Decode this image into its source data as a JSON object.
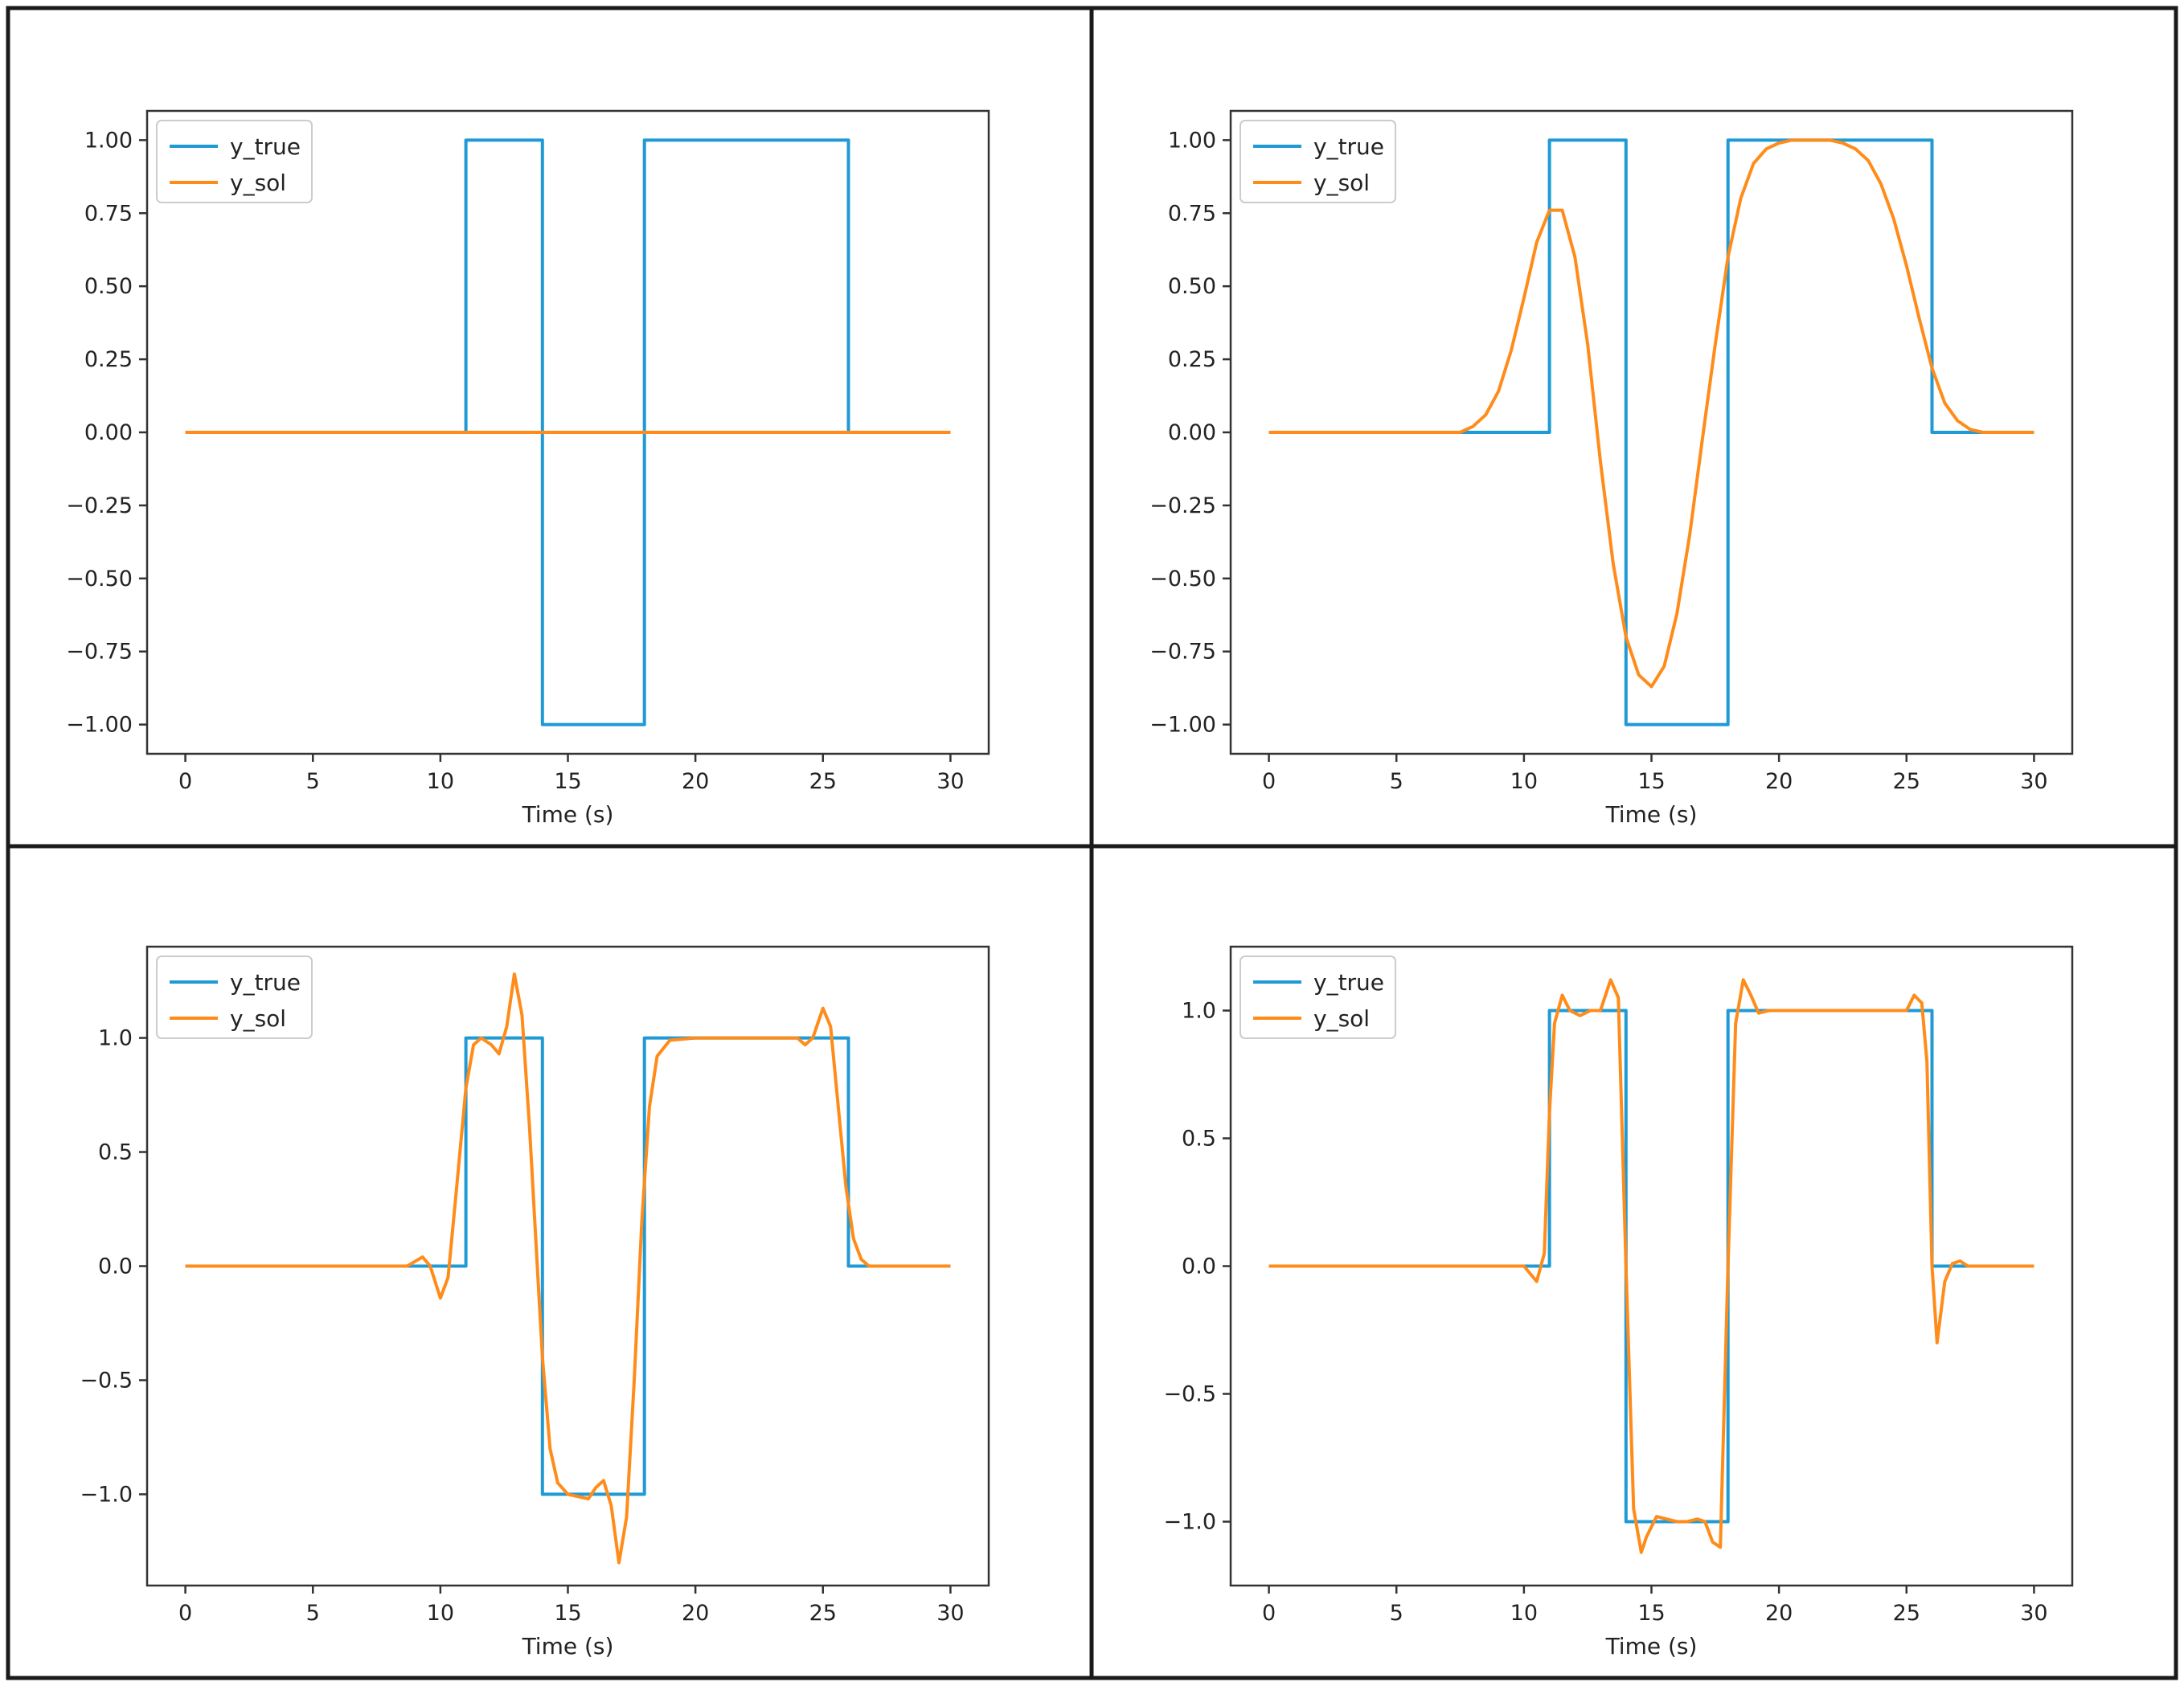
{
  "chart_data": [
    {
      "type": "line",
      "title": "",
      "xlabel": "Time (s)",
      "ylabel": "",
      "xlim": [
        -1.5,
        31.5
      ],
      "ylim": [
        -1.1,
        1.1
      ],
      "xticks": [
        0,
        5,
        10,
        15,
        20,
        25,
        30
      ],
      "xtick_labels": [
        "0",
        "5",
        "10",
        "15",
        "20",
        "25",
        "30"
      ],
      "yticks": [
        -1.0,
        -0.75,
        -0.5,
        -0.25,
        0.0,
        0.25,
        0.5,
        0.75,
        1.0
      ],
      "ytick_labels": [
        "−1.00",
        "−0.75",
        "−0.50",
        "−0.25",
        "0.00",
        "0.25",
        "0.50",
        "0.75",
        "1.00"
      ],
      "grid": false,
      "legend": "top-left",
      "series": [
        {
          "name": "y_true",
          "color": "#1f9ad4",
          "x": [
            0,
            11,
            11,
            14,
            14,
            18,
            18,
            26,
            26,
            30
          ],
          "y": [
            0,
            0,
            1,
            1,
            -1,
            -1,
            1,
            1,
            0,
            0
          ]
        },
        {
          "name": "y_sol",
          "color": "#ff8c1a",
          "x": [
            0,
            30
          ],
          "y": [
            0,
            0
          ]
        }
      ]
    },
    {
      "type": "line",
      "title": "",
      "xlabel": "Time (s)",
      "ylabel": "",
      "xlim": [
        -1.5,
        31.5
      ],
      "ylim": [
        -1.1,
        1.1
      ],
      "xticks": [
        0,
        5,
        10,
        15,
        20,
        25,
        30
      ],
      "xtick_labels": [
        "0",
        "5",
        "10",
        "15",
        "20",
        "25",
        "30"
      ],
      "yticks": [
        -1.0,
        -0.75,
        -0.5,
        -0.25,
        0.0,
        0.25,
        0.5,
        0.75,
        1.0
      ],
      "ytick_labels": [
        "−1.00",
        "−0.75",
        "−0.50",
        "−0.25",
        "0.00",
        "0.25",
        "0.50",
        "0.75",
        "1.00"
      ],
      "grid": false,
      "legend": "top-left",
      "series": [
        {
          "name": "y_true",
          "color": "#1f9ad4",
          "x": [
            0,
            11,
            11,
            14,
            14,
            18,
            18,
            26,
            26,
            30
          ],
          "y": [
            0,
            0,
            1,
            1,
            -1,
            -1,
            1,
            1,
            0,
            0
          ]
        },
        {
          "name": "y_sol",
          "color": "#ff8c1a",
          "x": [
            0,
            7.5,
            8,
            8.5,
            9,
            9.5,
            10,
            10.5,
            11,
            11.5,
            12,
            12.5,
            13,
            13.5,
            14,
            14.5,
            15,
            15.5,
            16,
            16.5,
            17,
            17.5,
            18,
            18.5,
            19,
            19.5,
            20,
            20.5,
            21,
            21.5,
            22,
            22.5,
            23,
            23.5,
            24,
            24.5,
            25,
            25.5,
            26,
            26.5,
            27,
            27.5,
            28,
            29,
            30
          ],
          "y": [
            0,
            0,
            0.02,
            0.06,
            0.14,
            0.28,
            0.46,
            0.65,
            0.76,
            0.76,
            0.6,
            0.3,
            -0.1,
            -0.45,
            -0.7,
            -0.83,
            -0.87,
            -0.8,
            -0.62,
            -0.35,
            -0.02,
            0.3,
            0.6,
            0.8,
            0.92,
            0.97,
            0.99,
            1.0,
            1.0,
            1.0,
            1.0,
            0.99,
            0.97,
            0.93,
            0.85,
            0.73,
            0.57,
            0.39,
            0.22,
            0.1,
            0.04,
            0.01,
            0.0,
            0.0,
            0.0
          ]
        }
      ]
    },
    {
      "type": "line",
      "title": "",
      "xlabel": "Time (s)",
      "ylabel": "",
      "xlim": [
        -1.5,
        31.5
      ],
      "ylim": [
        -1.4,
        1.4
      ],
      "xticks": [
        0,
        5,
        10,
        15,
        20,
        25,
        30
      ],
      "xtick_labels": [
        "0",
        "5",
        "10",
        "15",
        "20",
        "25",
        "30"
      ],
      "yticks": [
        -1.0,
        -0.5,
        0.0,
        0.5,
        1.0
      ],
      "ytick_labels": [
        "−1.0",
        "−0.5",
        "0.0",
        "0.5",
        "1.0"
      ],
      "grid": false,
      "legend": "top-left",
      "series": [
        {
          "name": "y_true",
          "color": "#1f9ad4",
          "x": [
            0,
            11,
            11,
            14,
            14,
            18,
            18,
            26,
            26,
            30
          ],
          "y": [
            0,
            0,
            1,
            1,
            -1,
            -1,
            1,
            1,
            0,
            0
          ]
        },
        {
          "name": "y_sol",
          "color": "#ff8c1a",
          "x": [
            0,
            8.7,
            9,
            9.3,
            9.6,
            10,
            10.3,
            10.6,
            11,
            11.3,
            11.6,
            12,
            12.3,
            12.6,
            12.9,
            13.2,
            13.5,
            13.8,
            14,
            14.3,
            14.6,
            15,
            15.4,
            15.8,
            16.1,
            16.4,
            16.7,
            17,
            17.3,
            17.6,
            17.9,
            18.2,
            18.5,
            19,
            20,
            22,
            23.5,
            24,
            24.3,
            24.6,
            25,
            25.3,
            25.6,
            25.9,
            26.2,
            26.5,
            26.8,
            27.2,
            28,
            30
          ],
          "y": [
            0,
            0,
            0.02,
            0.04,
            0.0,
            -0.14,
            -0.05,
            0.3,
            0.78,
            0.97,
            1.0,
            0.97,
            0.93,
            1.05,
            1.28,
            1.1,
            0.6,
            0.0,
            -0.4,
            -0.8,
            -0.95,
            -1.0,
            -1.01,
            -1.02,
            -0.97,
            -0.94,
            -1.05,
            -1.3,
            -1.1,
            -0.5,
            0.2,
            0.7,
            0.92,
            0.99,
            1.0,
            1.0,
            1.0,
            1.0,
            0.97,
            1.0,
            1.13,
            1.05,
            0.7,
            0.35,
            0.12,
            0.03,
            0.0,
            0.0,
            0.0,
            0.0
          ]
        }
      ]
    },
    {
      "type": "line",
      "title": "",
      "xlabel": "Time (s)",
      "ylabel": "",
      "xlim": [
        -1.5,
        31.5
      ],
      "ylim": [
        -1.25,
        1.25
      ],
      "xticks": [
        0,
        5,
        10,
        15,
        20,
        25,
        30
      ],
      "xtick_labels": [
        "0",
        "5",
        "10",
        "15",
        "20",
        "25",
        "30"
      ],
      "yticks": [
        -1.0,
        -0.5,
        0.0,
        0.5,
        1.0
      ],
      "ytick_labels": [
        "−1.0",
        "−0.5",
        "0.0",
        "0.5",
        "1.0"
      ],
      "grid": false,
      "legend": "top-left",
      "series": [
        {
          "name": "y_true",
          "color": "#1f9ad4",
          "x": [
            0,
            11,
            11,
            14,
            14,
            18,
            18,
            26,
            26,
            30
          ],
          "y": [
            0,
            0,
            1,
            1,
            -1,
            -1,
            1,
            1,
            0,
            0
          ]
        },
        {
          "name": "y_sol",
          "color": "#ff8c1a",
          "x": [
            0,
            10,
            10.5,
            10.8,
            11,
            11.2,
            11.5,
            11.8,
            12.2,
            12.6,
            13,
            13.4,
            13.7,
            14,
            14.3,
            14.6,
            14.8,
            15.2,
            15.6,
            16,
            16.4,
            16.8,
            17.1,
            17.4,
            17.7,
            18,
            18.3,
            18.6,
            18.9,
            19.2,
            19.6,
            20,
            22,
            24.5,
            25,
            25.3,
            25.6,
            25.8,
            26,
            26.2,
            26.5,
            26.8,
            27.1,
            27.4,
            28,
            30
          ],
          "y": [
            0,
            0,
            -0.06,
            0.05,
            0.6,
            0.95,
            1.06,
            1.0,
            0.98,
            1.0,
            1.0,
            1.12,
            1.05,
            0.0,
            -0.95,
            -1.12,
            -1.06,
            -0.98,
            -0.99,
            -1.0,
            -1.0,
            -0.99,
            -1.0,
            -1.08,
            -1.1,
            0.0,
            0.95,
            1.12,
            1.06,
            0.99,
            1.0,
            1.0,
            1.0,
            1.0,
            1.0,
            1.06,
            1.03,
            0.8,
            0.0,
            -0.3,
            -0.06,
            0.01,
            0.02,
            0.0,
            0.0,
            0.0
          ]
        }
      ]
    }
  ]
}
